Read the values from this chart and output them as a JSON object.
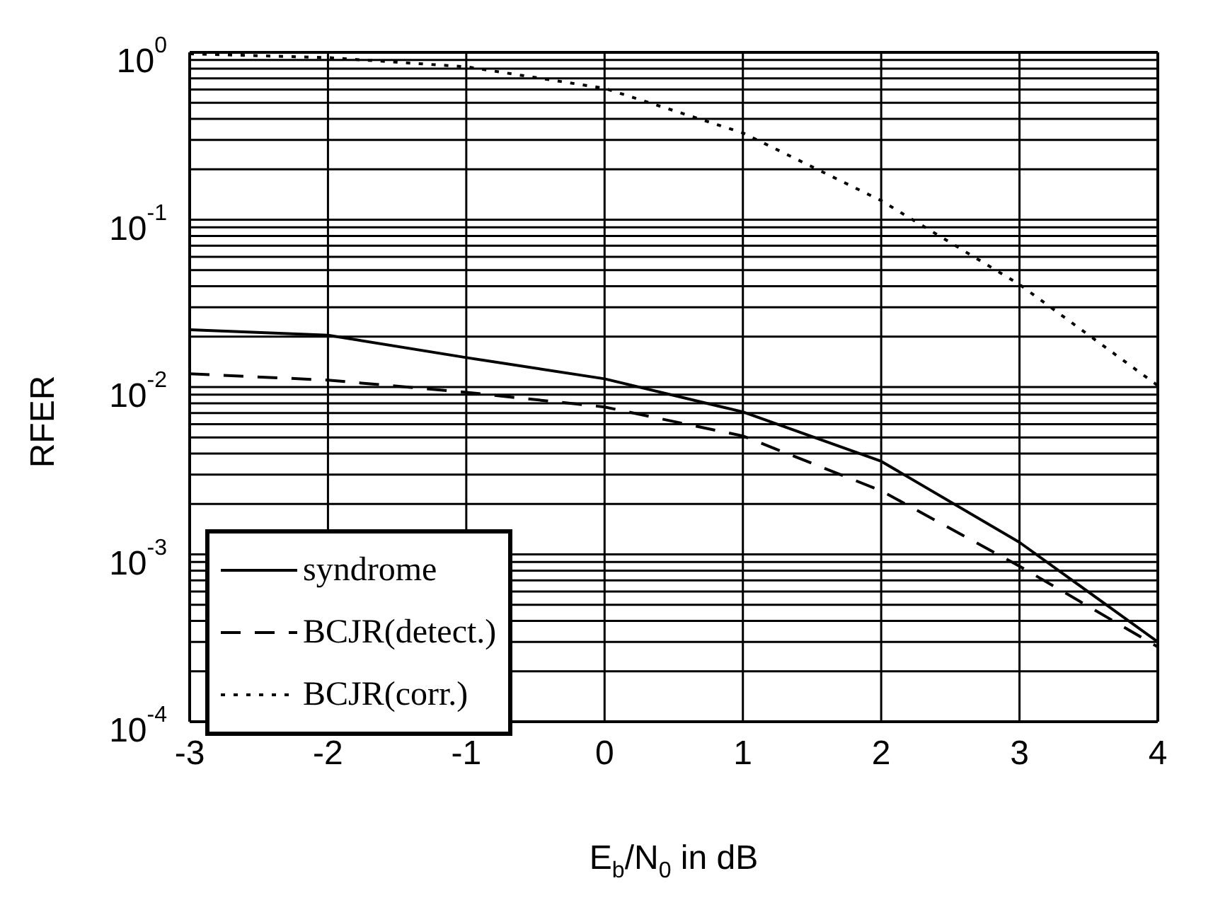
{
  "chart_data": {
    "type": "line",
    "xlabel": "E$_{b}$/N$_{0}$ in dB",
    "ylabel": "RFER",
    "x": [
      -3,
      -2,
      -1,
      0,
      1,
      2,
      3,
      4
    ],
    "series": [
      {
        "name": "syndrome",
        "color": "#000000",
        "line_style": "solid",
        "values": [
          0.022,
          0.0204,
          0.015,
          0.0112,
          0.0071,
          0.0036,
          0.00118,
          0.0003
        ]
      },
      {
        "name": "BCJR(detect.)",
        "color": "#000000",
        "line_style": "dashed",
        "values": [
          0.012,
          0.011,
          0.0093,
          0.0076,
          0.0051,
          0.0024,
          0.00085,
          0.00028
        ]
      },
      {
        "name": "BCJR(corr.)",
        "color": "#000000",
        "line_style": "dotted",
        "values": [
          0.98,
          0.93,
          0.82,
          0.61,
          0.33,
          0.13,
          0.041,
          0.0102
        ]
      }
    ],
    "log": "y",
    "xlim": [
      -3,
      4
    ],
    "xticks": [
      -3,
      -2,
      -1,
      0,
      1,
      2,
      3,
      4
    ],
    "ylim": [
      0.0001,
      1
    ],
    "yticks": [
      {
        "value": 1,
        "label": "10$^{0}$"
      },
      {
        "value": 0.1,
        "label": "10$^{-1}$"
      },
      {
        "value": 0.01,
        "label": "10$^{-2}$"
      },
      {
        "value": 0.001,
        "label": "10$^{-3}$"
      },
      {
        "value": 0.0001,
        "label": "10$^{-4}$"
      }
    ],
    "grid": true,
    "legend": "bottom left",
    "marker": "none"
  }
}
